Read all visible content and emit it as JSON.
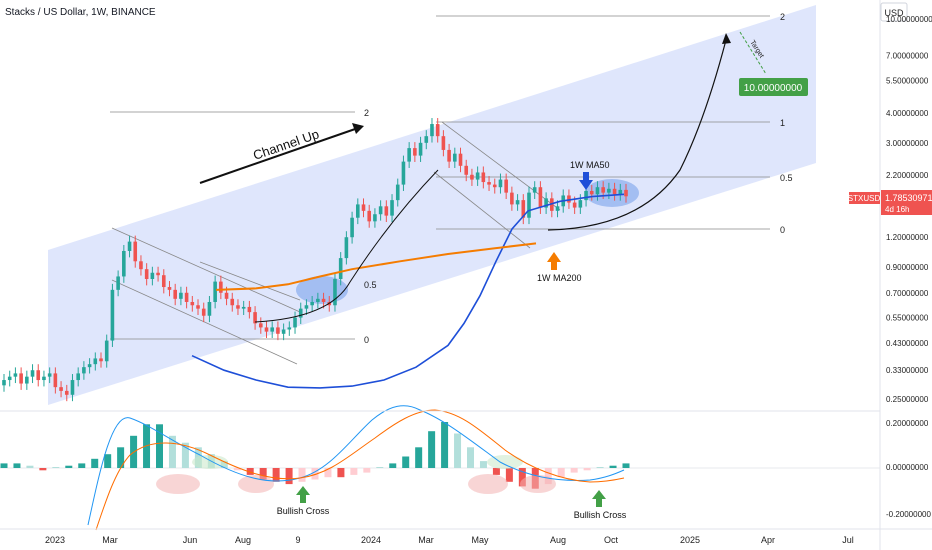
{
  "header": {
    "title": "Stacks / US Dollar, 1W, BINANCE"
  },
  "price_axis": {
    "currency": "USD",
    "price_ticks": [
      "10.00000000",
      "7.00000000",
      "5.50000000",
      "4.00000000",
      "3.00000000",
      "2.20000000",
      "1.60000000",
      "1.20000000",
      "0.90000000",
      "0.70000000",
      "0.55000000",
      "0.43000000",
      "0.33000000",
      "0.25000000"
    ],
    "macd_ticks": [
      "0.20000000",
      "0.00000000",
      "-0.20000000"
    ],
    "last_price_symbol": "STXUSD",
    "last_price": "1.78530971",
    "countdown": "4d 16h"
  },
  "time_axis": {
    "labels": [
      "2023",
      "Mar",
      "Jun",
      "Aug",
      "9",
      "2024",
      "Mar",
      "May",
      "Aug",
      "Oct",
      "2025",
      "Apr",
      "Jul"
    ]
  },
  "annotations": {
    "channel_label": "Channel Up",
    "ma50_label": "1W MA50",
    "ma200_label": "1W MA200",
    "target_label": "Target",
    "target_value": "10.00000000",
    "bullish_cross_label": "Bullish Cross",
    "fib_upper_labels": [
      "2",
      "1",
      "0.5",
      "0"
    ],
    "fib_lower_labels": [
      "2",
      "0.5",
      "0"
    ]
  },
  "colors": {
    "up": "#26a69a",
    "down": "#ef5350",
    "ma50": "#1e4fd8",
    "ma200": "#f57c00",
    "channel": "#d9e2fb",
    "target_box": "#43a047",
    "macd_line": "#2196f3",
    "signal_line": "#ff6d00"
  },
  "chart_data": {
    "type": "candlestick",
    "title": "Stacks / US Dollar, 1W, BINANCE",
    "y_scale": "log",
    "ylim": [
      0.22,
      12
    ],
    "last_price": 1.7853,
    "candles_close_approx": [
      0.3,
      0.31,
      0.32,
      0.29,
      0.31,
      0.33,
      0.3,
      0.31,
      0.32,
      0.28,
      0.27,
      0.26,
      0.3,
      0.32,
      0.34,
      0.35,
      0.37,
      0.36,
      0.44,
      0.72,
      0.82,
      1.05,
      1.15,
      0.95,
      0.88,
      0.8,
      0.85,
      0.83,
      0.74,
      0.72,
      0.66,
      0.7,
      0.64,
      0.62,
      0.6,
      0.56,
      0.64,
      0.78,
      0.7,
      0.66,
      0.62,
      0.6,
      0.61,
      0.58,
      0.52,
      0.5,
      0.48,
      0.5,
      0.47,
      0.49,
      0.5,
      0.55,
      0.6,
      0.62,
      0.64,
      0.66,
      0.64,
      0.62,
      0.8,
      0.98,
      1.2,
      1.45,
      1.65,
      1.55,
      1.4,
      1.5,
      1.62,
      1.48,
      1.72,
      2.0,
      2.5,
      2.85,
      2.65,
      3.0,
      3.2,
      3.6,
      3.2,
      2.8,
      2.5,
      2.7,
      2.4,
      2.2,
      2.1,
      2.25,
      2.05,
      2.0,
      1.95,
      2.1,
      1.85,
      1.65,
      1.72,
      1.45,
      1.85,
      1.95,
      1.6,
      1.75,
      1.55,
      1.62,
      1.8,
      1.68,
      1.6,
      1.72,
      1.88,
      1.82,
      1.95,
      1.85,
      1.92,
      1.82,
      1.9,
      1.785
    ],
    "ma50": [
      [
        0.24,
        0.38
      ],
      [
        0.28,
        0.33
      ],
      [
        0.32,
        0.3
      ],
      [
        0.36,
        0.28
      ],
      [
        0.4,
        0.278
      ],
      [
        0.44,
        0.283
      ],
      [
        0.48,
        0.3
      ],
      [
        0.52,
        0.34
      ],
      [
        0.56,
        0.42
      ],
      [
        0.58,
        0.52
      ],
      [
        0.6,
        0.68
      ],
      [
        0.62,
        0.95
      ],
      [
        0.64,
        1.3
      ],
      [
        0.66,
        1.55
      ],
      [
        0.7,
        1.7
      ],
      [
        0.74,
        1.78
      ],
      [
        0.78,
        1.82
      ]
    ],
    "ma200": [
      [
        0.27,
        0.72
      ],
      [
        0.32,
        0.73
      ],
      [
        0.36,
        0.76
      ],
      [
        0.4,
        0.82
      ],
      [
        0.44,
        0.88
      ],
      [
        0.5,
        0.95
      ],
      [
        0.56,
        1.02
      ],
      [
        0.62,
        1.08
      ],
      [
        0.67,
        1.13
      ]
    ],
    "macd_hist_approx": [
      0.02,
      0.02,
      0.01,
      -0.01,
      0.0,
      0.01,
      0.02,
      0.04,
      0.06,
      0.09,
      0.14,
      0.19,
      0.19,
      0.14,
      0.11,
      0.09,
      0.06,
      0.03,
      -0.01,
      -0.03,
      -0.05,
      -0.06,
      -0.07,
      -0.06,
      -0.05,
      -0.04,
      -0.04,
      -0.03,
      -0.02,
      0.0,
      0.02,
      0.05,
      0.09,
      0.16,
      0.2,
      0.15,
      0.09,
      0.03,
      -0.03,
      -0.06,
      -0.08,
      -0.09,
      -0.07,
      -0.04,
      -0.02,
      -0.01,
      0.0,
      0.01,
      0.02
    ],
    "projection_target": 10.0
  }
}
